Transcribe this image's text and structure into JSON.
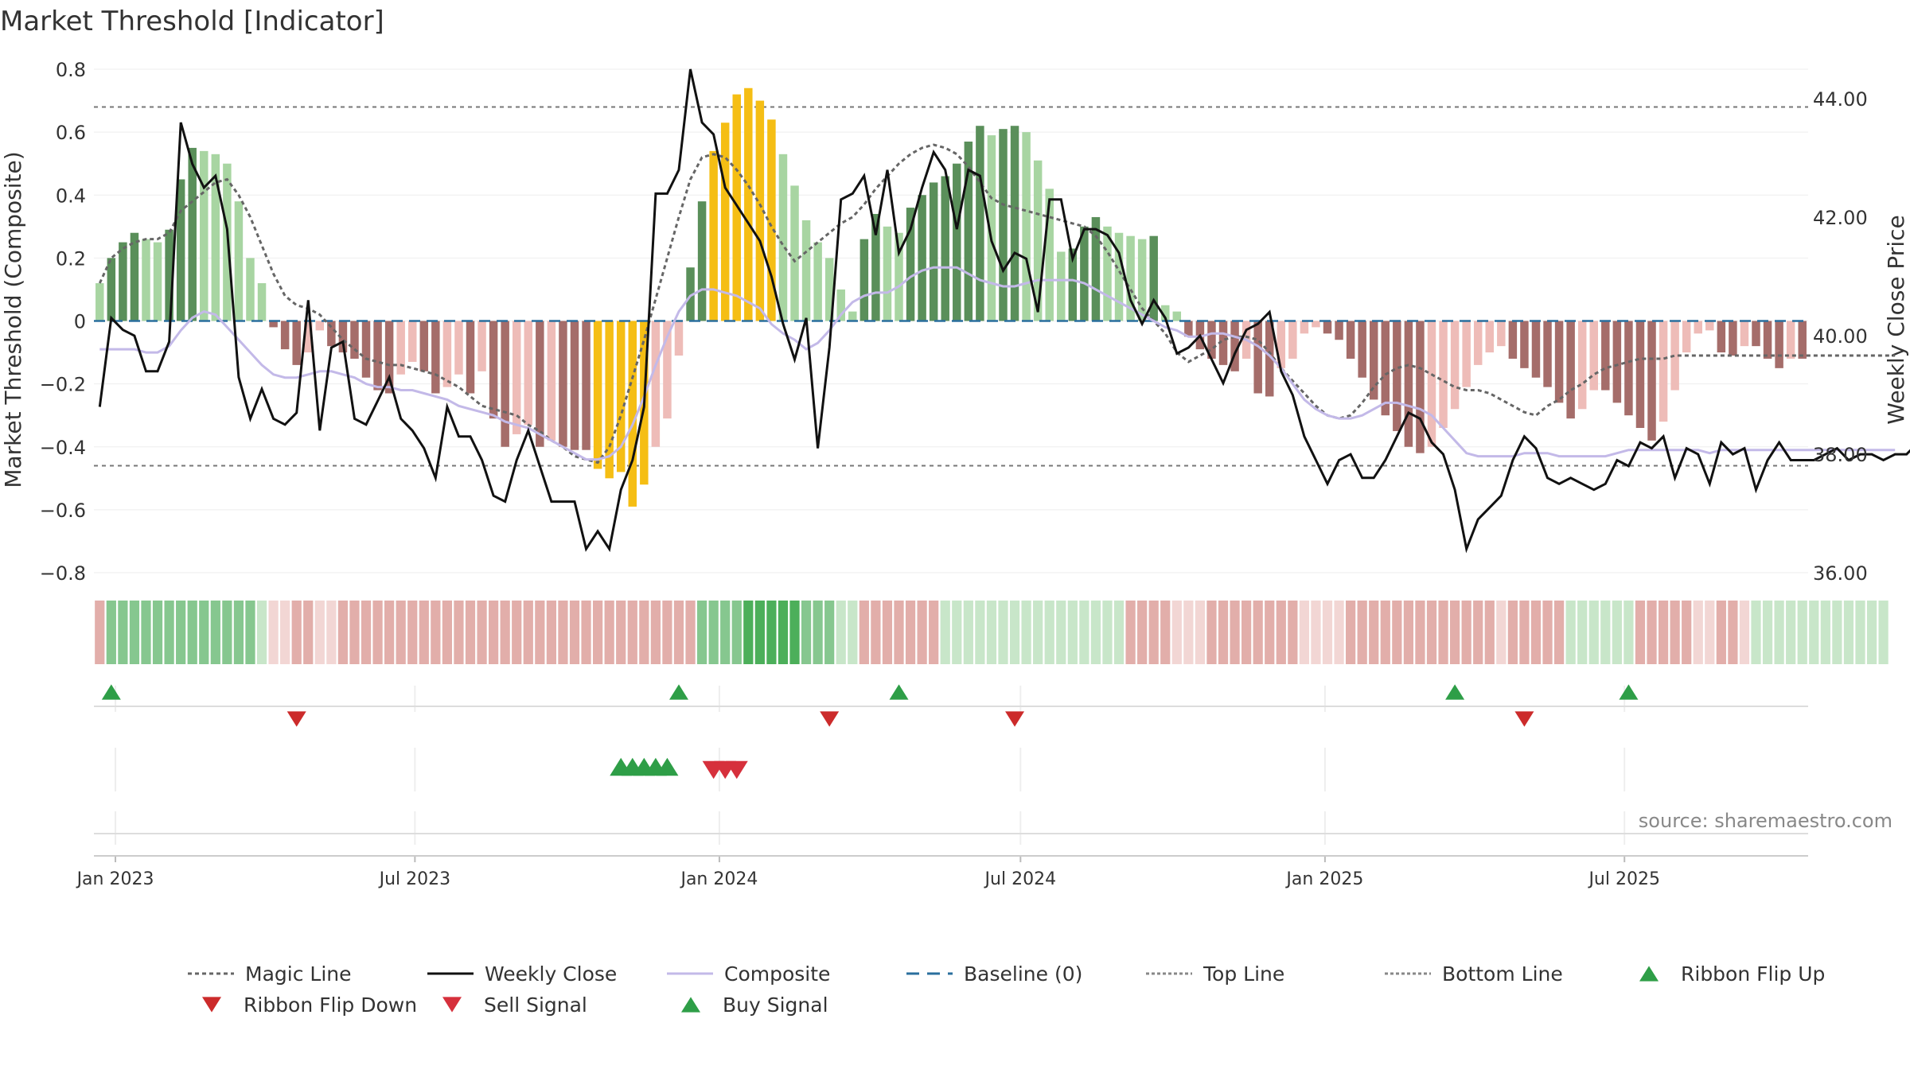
{
  "chart_data": {
    "type": "bar",
    "title": "Market Threshold [Indicator]",
    "ylabel": "Market Threshold (Composite)",
    "y2label": "Weekly Close Price",
    "ylim": [
      -0.8,
      0.8
    ],
    "y2lim": [
      36.0,
      44.5
    ],
    "yticks": [
      "0.8",
      "0.6",
      "0.4",
      "0.2",
      "0",
      "−0.2",
      "−0.4",
      "−0.6",
      "−0.8"
    ],
    "y2ticks": [
      "44.00",
      "42.00",
      "40.00",
      "38.00",
      "36.00"
    ],
    "xticks": [
      "Jan 2023",
      "Jul 2023",
      "Jan 2024",
      "Jul 2024",
      "Jan 2025",
      "Jul 2025"
    ],
    "reference_lines": {
      "top": 0.68,
      "bottom": -0.46,
      "baseline": 0
    },
    "source": "source: sharemaestro.com",
    "grid": true,
    "legend_position": "bottom",
    "legend": [
      "Magic Line",
      "Weekly Close",
      "Composite",
      "Baseline (0)",
      "Top Line",
      "Bottom Line",
      "Ribbon Flip Up",
      "Ribbon Flip Down",
      "Sell Signal",
      "Buy Signal"
    ],
    "start_date": "2022-12-19",
    "bars": [
      0.12,
      0.2,
      0.25,
      0.28,
      0.26,
      0.25,
      0.29,
      0.45,
      0.55,
      0.54,
      0.53,
      0.5,
      0.38,
      0.2,
      0.12,
      -0.02,
      -0.09,
      -0.14,
      -0.1,
      -0.03,
      -0.08,
      -0.1,
      -0.12,
      -0.18,
      -0.22,
      -0.23,
      -0.17,
      -0.13,
      -0.16,
      -0.23,
      -0.21,
      -0.17,
      -0.23,
      -0.16,
      -0.31,
      -0.4,
      -0.36,
      -0.33,
      -0.4,
      -0.38,
      -0.4,
      -0.41,
      -0.41,
      -0.47,
      -0.5,
      -0.48,
      -0.59,
      -0.52,
      -0.4,
      -0.31,
      -0.11,
      0.17,
      0.38,
      0.54,
      0.63,
      0.72,
      0.74,
      0.7,
      0.64,
      0.53,
      0.43,
      0.32,
      0.25,
      0.2,
      0.1,
      0.03,
      0.26,
      0.34,
      0.3,
      0.28,
      0.36,
      0.4,
      0.44,
      0.46,
      0.5,
      0.57,
      0.62,
      0.59,
      0.61,
      0.62,
      0.6,
      0.51,
      0.42,
      0.22,
      0.23,
      0.3,
      0.33,
      0.3,
      0.28,
      0.27,
      0.26,
      0.27,
      0.05,
      0.03,
      -0.05,
      -0.09,
      -0.12,
      -0.14,
      -0.16,
      -0.12,
      -0.23,
      -0.24,
      -0.15,
      -0.12,
      -0.04,
      -0.02,
      -0.04,
      -0.06,
      -0.12,
      -0.18,
      -0.25,
      -0.3,
      -0.35,
      -0.4,
      -0.42,
      -0.4,
      -0.34,
      -0.28,
      -0.21,
      -0.14,
      -0.1,
      -0.08,
      -0.12,
      -0.15,
      -0.18,
      -0.21,
      -0.26,
      -0.31,
      -0.28,
      -0.22,
      -0.22,
      -0.26,
      -0.3,
      -0.34,
      -0.38,
      -0.32,
      -0.22,
      -0.1,
      -0.04,
      -0.03,
      -0.1,
      -0.11,
      -0.08,
      -0.08,
      -0.12,
      -0.15,
      -0.12,
      -0.12
    ],
    "magic_line": [
      0.12,
      0.2,
      0.23,
      0.25,
      0.26,
      0.26,
      0.28,
      0.35,
      0.38,
      0.41,
      0.44,
      0.45,
      0.4,
      0.33,
      0.24,
      0.15,
      0.08,
      0.05,
      0.04,
      0.02,
      -0.02,
      -0.06,
      -0.09,
      -0.12,
      -0.13,
      -0.14,
      -0.14,
      -0.15,
      -0.16,
      -0.17,
      -0.19,
      -0.21,
      -0.24,
      -0.27,
      -0.28,
      -0.29,
      -0.3,
      -0.33,
      -0.35,
      -0.38,
      -0.4,
      -0.43,
      -0.44,
      -0.45,
      -0.4,
      -0.3,
      -0.18,
      -0.06,
      0.07,
      0.2,
      0.33,
      0.45,
      0.52,
      0.53,
      0.52,
      0.48,
      0.43,
      0.37,
      0.3,
      0.24,
      0.19,
      0.22,
      0.25,
      0.28,
      0.31,
      0.33,
      0.37,
      0.42,
      0.46,
      0.5,
      0.53,
      0.55,
      0.56,
      0.55,
      0.53,
      0.49,
      0.44,
      0.39,
      0.37,
      0.36,
      0.35,
      0.34,
      0.33,
      0.32,
      0.31,
      0.3,
      0.27,
      0.22,
      0.16,
      0.1,
      0.04,
      0.0,
      -0.04,
      -0.1,
      -0.13,
      -0.11,
      -0.09,
      -0.06,
      -0.05,
      -0.05,
      -0.06,
      -0.1,
      -0.15,
      -0.19,
      -0.23,
      -0.27,
      -0.3,
      -0.31,
      -0.3,
      -0.26,
      -0.21,
      -0.17,
      -0.15,
      -0.14,
      -0.15,
      -0.17,
      -0.19,
      -0.21,
      -0.22,
      -0.22,
      -0.23,
      -0.25,
      -0.27,
      -0.29,
      -0.3,
      -0.27,
      -0.25,
      -0.22,
      -0.2,
      -0.17,
      -0.15,
      -0.14,
      -0.13,
      -0.12,
      -0.12,
      -0.12,
      -0.11,
      -0.11,
      -0.11,
      -0.11,
      -0.11,
      -0.11,
      -0.11,
      -0.11,
      -0.11,
      -0.11,
      -0.11,
      -0.11,
      -0.11,
      -0.11,
      -0.11,
      -0.11,
      -0.11,
      -0.11,
      -0.11,
      -0.11
    ],
    "composite": [
      -0.09,
      -0.09,
      -0.09,
      -0.09,
      -0.1,
      -0.1,
      -0.08,
      -0.03,
      0.01,
      0.03,
      0.02,
      -0.02,
      -0.06,
      -0.1,
      -0.14,
      -0.17,
      -0.18,
      -0.18,
      -0.17,
      -0.16,
      -0.16,
      -0.17,
      -0.18,
      -0.2,
      -0.21,
      -0.21,
      -0.22,
      -0.22,
      -0.23,
      -0.24,
      -0.25,
      -0.27,
      -0.28,
      -0.29,
      -0.3,
      -0.32,
      -0.33,
      -0.34,
      -0.36,
      -0.38,
      -0.4,
      -0.42,
      -0.44,
      -0.44,
      -0.43,
      -0.4,
      -0.33,
      -0.24,
      -0.14,
      -0.05,
      0.03,
      0.08,
      0.1,
      0.1,
      0.09,
      0.08,
      0.06,
      0.04,
      -0.01,
      -0.04,
      -0.06,
      -0.09,
      -0.07,
      -0.03,
      0.02,
      0.06,
      0.08,
      0.09,
      0.09,
      0.11,
      0.14,
      0.16,
      0.17,
      0.17,
      0.17,
      0.15,
      0.13,
      0.12,
      0.11,
      0.11,
      0.12,
      0.13,
      0.13,
      0.13,
      0.13,
      0.12,
      0.1,
      0.08,
      0.06,
      0.04,
      0.02,
      0.0,
      -0.02,
      -0.03,
      -0.05,
      -0.05,
      -0.04,
      -0.04,
      -0.05,
      -0.06,
      -0.08,
      -0.11,
      -0.15,
      -0.2,
      -0.25,
      -0.28,
      -0.3,
      -0.31,
      -0.31,
      -0.3,
      -0.28,
      -0.26,
      -0.26,
      -0.27,
      -0.28,
      -0.3,
      -0.34,
      -0.38,
      -0.42,
      -0.43,
      -0.43,
      -0.43,
      -0.43,
      -0.42,
      -0.42,
      -0.42,
      -0.43,
      -0.43,
      -0.43,
      -0.43,
      -0.43,
      -0.42,
      -0.41,
      -0.41,
      -0.41,
      -0.41,
      -0.41,
      -0.41,
      -0.41,
      -0.42,
      -0.41,
      -0.41,
      -0.41,
      -0.41,
      -0.41,
      -0.41,
      -0.41,
      -0.41,
      -0.41,
      -0.41,
      -0.41,
      -0.41,
      -0.41,
      -0.41,
      -0.41,
      -0.41
    ],
    "weekly_close": [
      38.8,
      40.3,
      40.1,
      40.0,
      39.4,
      39.4,
      39.9,
      43.6,
      42.9,
      42.5,
      42.7,
      41.8,
      39.3,
      38.6,
      39.1,
      38.6,
      38.5,
      38.7,
      40.6,
      38.4,
      39.8,
      39.9,
      38.6,
      38.5,
      38.9,
      39.3,
      38.6,
      38.4,
      38.1,
      37.6,
      38.8,
      38.3,
      38.3,
      37.9,
      37.3,
      37.2,
      37.9,
      38.4,
      37.8,
      37.2,
      37.2,
      37.2,
      36.4,
      36.7,
      36.4,
      37.4,
      37.9,
      38.8,
      42.4,
      42.4,
      42.8,
      44.5,
      43.6,
      43.4,
      42.5,
      42.2,
      41.9,
      41.6,
      41.0,
      40.2,
      39.6,
      40.3,
      38.1,
      39.8,
      42.3,
      42.4,
      42.7,
      41.7,
      42.8,
      41.4,
      41.8,
      42.5,
      43.1,
      42.8,
      41.8,
      42.8,
      42.7,
      41.6,
      41.1,
      41.4,
      41.3,
      40.4,
      42.3,
      42.3,
      41.3,
      41.8,
      41.8,
      41.7,
      41.4,
      40.6,
      40.2,
      40.6,
      40.3,
      39.7,
      39.8,
      40.0,
      39.6,
      39.2,
      39.7,
      40.1,
      40.2,
      40.4,
      39.4,
      39.0,
      38.3,
      37.9,
      37.5,
      37.9,
      38.0,
      37.6,
      37.6,
      37.9,
      38.3,
      38.7,
      38.6,
      38.2,
      38.0,
      37.4,
      36.4,
      36.9,
      37.1,
      37.3,
      37.9,
      38.3,
      38.1,
      37.6,
      37.5,
      37.6,
      37.5,
      37.4,
      37.5,
      37.9,
      37.8,
      38.2,
      38.1,
      38.3,
      37.6,
      38.1,
      38.0,
      37.5,
      38.2,
      38.0,
      38.1,
      37.4,
      37.9,
      38.2,
      37.9,
      37.9,
      37.9,
      38.0,
      38.1,
      37.9,
      38.0,
      38.0,
      37.9,
      38.0,
      38.0,
      38.2
    ],
    "buy_signals": [
      "2023-10-30",
      "2023-11-06",
      "2023-11-13",
      "2023-11-20",
      "2023-11-27"
    ],
    "sell_signals": [
      "2023-12-25",
      "2024-01-01",
      "2024-01-08"
    ],
    "ribbon_flip_up": [
      "2022-12-26",
      "2023-12-04",
      "2024-04-15",
      "2025-03-17",
      "2025-06-30"
    ],
    "ribbon_flip_down": [
      "2023-04-17",
      "2024-03-04",
      "2024-06-24",
      "2025-04-28"
    ],
    "ribbon_tone": [
      -1,
      1,
      1,
      1,
      1,
      1,
      1,
      1,
      1,
      1,
      1,
      1,
      1,
      1,
      0,
      -1,
      -1,
      -1,
      -1,
      -1,
      -1,
      -1,
      -1,
      -1,
      -1,
      -1,
      -1,
      -1,
      -1,
      -1,
      -1,
      -1,
      -1,
      -1,
      -1,
      -1,
      -1,
      -1,
      -1,
      -1,
      -1,
      -1,
      -1,
      -1,
      -1,
      -1,
      -1,
      -1,
      -1,
      -1,
      -1,
      -1,
      1,
      1,
      1,
      1,
      2,
      2,
      2,
      2,
      2,
      1,
      1,
      1,
      0,
      0,
      -1,
      -1,
      -1,
      -1,
      -1,
      -1,
      -1,
      0,
      0,
      0,
      0,
      0,
      0,
      0,
      0,
      0,
      0,
      0,
      0,
      0,
      0,
      0,
      0,
      -1,
      -1,
      -1,
      -1,
      -1,
      -1,
      -1,
      -1,
      -1,
      -1,
      -1,
      -1,
      -1,
      -1,
      -1,
      -1,
      -1,
      -1,
      -1,
      -1,
      -1,
      -1,
      -1,
      -1,
      -1,
      -1,
      -1,
      -1,
      -1,
      -1,
      -1,
      -1,
      -1,
      -1,
      -1,
      -1,
      -1,
      -1,
      0,
      0,
      0,
      0,
      0,
      0,
      -1,
      -1,
      -1,
      -1,
      -1,
      -1,
      -1,
      -1,
      -1,
      -1,
      0,
      0,
      0,
      0,
      0,
      0,
      0,
      0,
      0,
      0,
      0,
      0
    ]
  },
  "colors": {
    "bar_dark_green": "#5a8f5a",
    "bar_light_green": "#a8d5a2",
    "bar_dark_red": "#a56d6a",
    "bar_light_red": "#eebcb8",
    "bar_extreme": "#f5be14",
    "weekly_close": "#111111",
    "composite": "#c3b9e8",
    "magic_line": "#666666",
    "baseline": "#2a6f9e",
    "buy": "#2e9e47",
    "sell": "#d6303c"
  }
}
